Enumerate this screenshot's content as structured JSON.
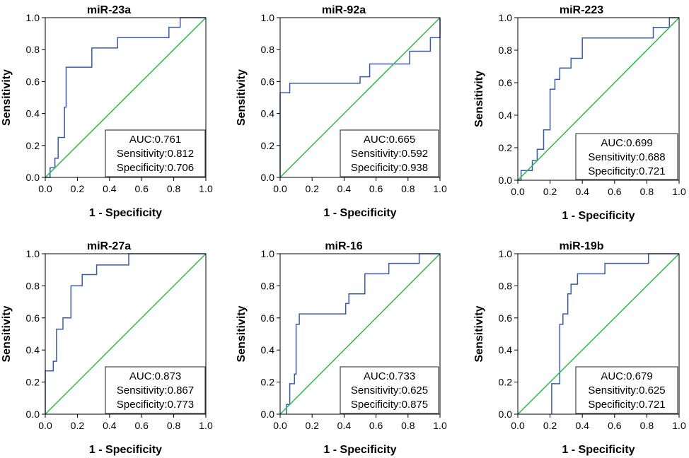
{
  "chart_data": [
    {
      "type": "line",
      "title": "miR-23a",
      "xlabel": "1 - Specificity",
      "ylabel": "Sensitivity",
      "xlim": [
        0,
        1
      ],
      "ylim": [
        0,
        1
      ],
      "xticks": [
        "0.0",
        "0.2",
        "0.4",
        "0.6",
        "0.8",
        "1.0"
      ],
      "yticks": [
        "0.0",
        "0.2",
        "0.4",
        "0.6",
        "0.8",
        "1.0"
      ],
      "series": [
        {
          "name": "ROC",
          "color": "#3a5ba8",
          "x": [
            0,
            0.03,
            0.03,
            0.06,
            0.06,
            0.08,
            0.08,
            0.12,
            0.12,
            0.13,
            0.13,
            0.29,
            0.29,
            0.45,
            0.45,
            0.77,
            0.77,
            0.84,
            0.84,
            1.0
          ],
          "y": [
            0,
            0,
            0.06,
            0.06,
            0.12,
            0.12,
            0.25,
            0.25,
            0.44,
            0.44,
            0.69,
            0.69,
            0.81,
            0.81,
            0.875,
            0.875,
            0.94,
            0.94,
            1.0,
            1.0
          ]
        },
        {
          "name": "Reference",
          "color": "#2db84a",
          "x": [
            0,
            1
          ],
          "y": [
            0,
            1
          ]
        }
      ],
      "annotation": {
        "auc": "AUC:0.761",
        "sensitivity": "Sensitivity:0.812",
        "specificity": "Specificity:0.706"
      }
    },
    {
      "type": "line",
      "title": "miR-92a",
      "xlabel": "1 - Specificity",
      "ylabel": "Sensitivity",
      "xlim": [
        0,
        1
      ],
      "ylim": [
        0,
        1
      ],
      "xticks": [
        "0.0",
        "0.2",
        "0.4",
        "0.6",
        "0.8",
        "1.0"
      ],
      "yticks": [
        "0.0",
        "0.2",
        "0.4",
        "0.6",
        "0.8",
        "1.0"
      ],
      "series": [
        {
          "name": "ROC",
          "color": "#3a5ba8",
          "x": [
            0,
            0,
            0.06,
            0.06,
            0.5,
            0.5,
            0.56,
            0.56,
            0.81,
            0.81,
            0.94,
            0.94,
            1.0,
            1.0
          ],
          "y": [
            0,
            0.53,
            0.53,
            0.59,
            0.59,
            0.63,
            0.63,
            0.71,
            0.71,
            0.79,
            0.79,
            0.875,
            0.875,
            1.0
          ]
        },
        {
          "name": "Reference",
          "color": "#2db84a",
          "x": [
            0,
            1
          ],
          "y": [
            0,
            1
          ]
        }
      ],
      "annotation": {
        "auc": "AUC:0.665",
        "sensitivity": "Sensitivity:0.592",
        "specificity": "Specificity:0.938"
      }
    },
    {
      "type": "line",
      "title": "miR-223",
      "xlabel": "1 - Specificity",
      "ylabel": "Sensitivity",
      "xlim": [
        0,
        1
      ],
      "ylim": [
        0,
        1
      ],
      "xticks": [
        "0.0",
        "0.2",
        "0.4",
        "0.6",
        "0.8",
        "1.0"
      ],
      "yticks": [
        "0.0",
        "0.2",
        "0.4",
        "0.6",
        "0.8",
        "1.0"
      ],
      "series": [
        {
          "name": "ROC",
          "color": "#3a5ba8",
          "x": [
            0,
            0.02,
            0.02,
            0.09,
            0.09,
            0.12,
            0.12,
            0.16,
            0.16,
            0.2,
            0.2,
            0.23,
            0.23,
            0.26,
            0.26,
            0.33,
            0.33,
            0.4,
            0.4,
            0.84,
            0.84,
            0.94,
            0.94,
            1.0
          ],
          "y": [
            0,
            0,
            0.06,
            0.06,
            0.12,
            0.12,
            0.19,
            0.19,
            0.31,
            0.31,
            0.56,
            0.56,
            0.62,
            0.62,
            0.69,
            0.69,
            0.75,
            0.75,
            0.875,
            0.875,
            0.94,
            0.94,
            1.0,
            1.0
          ]
        },
        {
          "name": "Reference",
          "color": "#2db84a",
          "x": [
            0,
            1
          ],
          "y": [
            0,
            1
          ]
        }
      ],
      "annotation": {
        "auc": "AUC:0.699",
        "sensitivity": "Sensitivity:0.688",
        "specificity": "Specificity:0.721"
      }
    },
    {
      "type": "line",
      "title": "miR-27a",
      "xlabel": "1 - Specificity",
      "ylabel": "Sensitivity",
      "xlim": [
        0,
        1
      ],
      "ylim": [
        0,
        1
      ],
      "xticks": [
        "0.0",
        "0.2",
        "0.4",
        "0.6",
        "0.8",
        "1.0"
      ],
      "yticks": [
        "0.0",
        "0.2",
        "0.4",
        "0.6",
        "0.8",
        "1.0"
      ],
      "series": [
        {
          "name": "ROC",
          "color": "#3a5ba8",
          "x": [
            0,
            0,
            0.05,
            0.05,
            0.07,
            0.07,
            0.11,
            0.11,
            0.16,
            0.16,
            0.23,
            0.23,
            0.32,
            0.32,
            0.52,
            0.52,
            1.0
          ],
          "y": [
            0,
            0.27,
            0.27,
            0.33,
            0.33,
            0.53,
            0.53,
            0.6,
            0.6,
            0.8,
            0.8,
            0.87,
            0.87,
            0.93,
            0.93,
            1.0,
            1.0
          ]
        },
        {
          "name": "Reference",
          "color": "#2db84a",
          "x": [
            0,
            1
          ],
          "y": [
            0,
            1
          ]
        }
      ],
      "annotation": {
        "auc": "AUC:0.873",
        "sensitivity": "Sensitivity:0.867",
        "specificity": "Specificity:0.773"
      }
    },
    {
      "type": "line",
      "title": "miR-16",
      "xlabel": "1 - Specificity",
      "ylabel": "Sensitivity",
      "xlim": [
        0,
        1
      ],
      "ylim": [
        0,
        1
      ],
      "xticks": [
        "0.0",
        "0.2",
        "0.4",
        "0.6",
        "0.8",
        "1.0"
      ],
      "yticks": [
        "0.0",
        "0.2",
        "0.4",
        "0.6",
        "0.8",
        "1.0"
      ],
      "series": [
        {
          "name": "ROC",
          "color": "#3a5ba8",
          "x": [
            0.04,
            0.04,
            0.06,
            0.06,
            0.09,
            0.09,
            0.1,
            0.1,
            0.12,
            0.12,
            0.41,
            0.41,
            0.43,
            0.43,
            0.53,
            0.53,
            0.68,
            0.68,
            0.87,
            0.87,
            1.0
          ],
          "y": [
            0,
            0.06,
            0.06,
            0.19,
            0.19,
            0.25,
            0.25,
            0.56,
            0.56,
            0.625,
            0.625,
            0.69,
            0.69,
            0.75,
            0.75,
            0.875,
            0.875,
            0.94,
            0.94,
            1.0,
            1.0
          ]
        },
        {
          "name": "Reference",
          "color": "#2db84a",
          "x": [
            0,
            1
          ],
          "y": [
            0,
            1
          ]
        }
      ],
      "annotation": {
        "auc": "AUC:0.733",
        "sensitivity": "Sensitivity:0.625",
        "specificity": "Specificity:0.875"
      }
    },
    {
      "type": "line",
      "title": "miR-19b",
      "xlabel": "1 - Specificity",
      "ylabel": "Sensitivity",
      "xlim": [
        0,
        1
      ],
      "ylim": [
        0,
        1
      ],
      "xticks": [
        "0.0",
        "0.2",
        "0.4",
        "0.6",
        "0.8",
        "1.0"
      ],
      "yticks": [
        "0.0",
        "0.2",
        "0.4",
        "0.6",
        "0.8",
        "1.0"
      ],
      "series": [
        {
          "name": "ROC",
          "color": "#3a5ba8",
          "x": [
            0.21,
            0.21,
            0.26,
            0.26,
            0.28,
            0.28,
            0.31,
            0.31,
            0.33,
            0.33,
            0.37,
            0.37,
            0.54,
            0.54,
            0.81,
            0.81,
            1.0
          ],
          "y": [
            0,
            0.19,
            0.19,
            0.56,
            0.56,
            0.625,
            0.625,
            0.75,
            0.75,
            0.81,
            0.81,
            0.875,
            0.875,
            0.94,
            0.94,
            1.0,
            1.0
          ]
        },
        {
          "name": "Reference",
          "color": "#2db84a",
          "x": [
            0,
            1
          ],
          "y": [
            0,
            1
          ]
        }
      ],
      "annotation": {
        "auc": "AUC:0.679",
        "sensitivity": "Sensitivity:0.625",
        "specificity": "Specificity:0.721"
      }
    }
  ]
}
